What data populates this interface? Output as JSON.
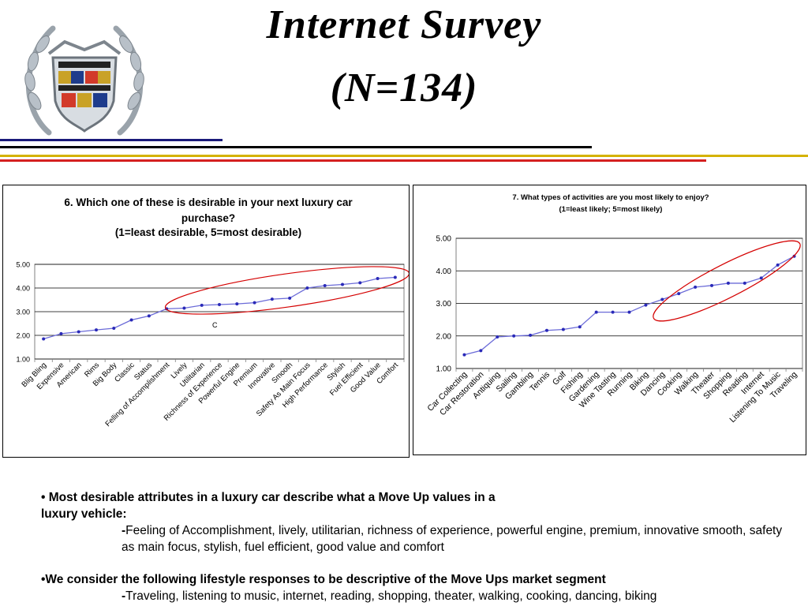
{
  "header": {
    "title_line1": "Internet Survey",
    "title_line2": "(N=134)",
    "logo_name": "crest-wreath-logo"
  },
  "colors": {
    "line_navy": "#1a1a7a",
    "line_black": "#000000",
    "line_red": "#d42020",
    "line_gold": "#d4b200",
    "series": "#6b6bd8",
    "oval": "#d40000"
  },
  "chart_data": [
    {
      "type": "line",
      "title": "6. Which one of these is desirable in your next luxury car purchase?",
      "subtitle": "(1=least desirable, 5=most desirable)",
      "ylim": [
        1,
        5
      ],
      "yticks": [
        "5.00",
        "4.00",
        "3.00",
        "2.00",
        "1.00"
      ],
      "grid": true,
      "annotation": "C",
      "categories": [
        "Blig Bling",
        "Expensive",
        "American",
        "Rims",
        "Big Body",
        "Classic",
        "Status",
        "Felling of Accomplishment",
        "Lively",
        "Utilitarian",
        "Richness of Experience",
        "Powerful Engine",
        "Premium",
        "Innovative",
        "Smooth",
        "Safety As Main Focus",
        "High Performance",
        "Stylish",
        "Fuel Efficient",
        "Good Value",
        "Comfort"
      ],
      "values": [
        1.85,
        2.07,
        2.15,
        2.23,
        2.3,
        2.65,
        2.82,
        3.12,
        3.15,
        3.27,
        3.3,
        3.33,
        3.38,
        3.53,
        3.57,
        4.0,
        4.1,
        4.15,
        4.22,
        4.4,
        4.45
      ]
    },
    {
      "type": "line",
      "title": "7. What types of activities are you most likely to enjoy?",
      "subtitle": "(1=least likely; 5=most likely)",
      "ylim": [
        1,
        5
      ],
      "yticks": [
        "5.00",
        "4.00",
        "3.00",
        "2.00",
        "1.00"
      ],
      "grid": true,
      "categories": [
        "Car Collecting",
        "Car Restoration",
        "Antiquing",
        "Sailing",
        "Gambling",
        "Tennis",
        "Golf",
        "Fishing",
        "Gardening",
        "Wine Tasting",
        "Running",
        "Biking",
        "Dancing",
        "Cooking",
        "Walking",
        "Theater",
        "Shopping",
        "Reading",
        "Internet",
        "Listening To Music",
        "Traveling"
      ],
      "values": [
        1.42,
        1.55,
        1.97,
        2.0,
        2.02,
        2.17,
        2.2,
        2.28,
        2.73,
        2.73,
        2.73,
        2.95,
        3.12,
        3.3,
        3.5,
        3.55,
        3.62,
        3.62,
        3.78,
        4.18,
        4.45
      ]
    }
  ],
  "bullets": {
    "b1_head_line1": "• Most desirable attributes in a luxury car describe what a Move Up values in a",
    "b1_head_line2": "luxury vehicle:",
    "b1_dash": "-",
    "b1_detail": "Feeling of Accomplishment, lively, utilitarian, richness of experience, powerful engine, premium, innovative smooth, safety as main focus, stylish, fuel efficient, good value and comfort",
    "b2_head": "•We consider the following lifestyle responses to be descriptive of the Move Ups market segment",
    "b2_dash": "-",
    "b2_detail": "Traveling, listening to music, internet, reading, shopping, theater, walking, cooking, dancing, biking"
  }
}
